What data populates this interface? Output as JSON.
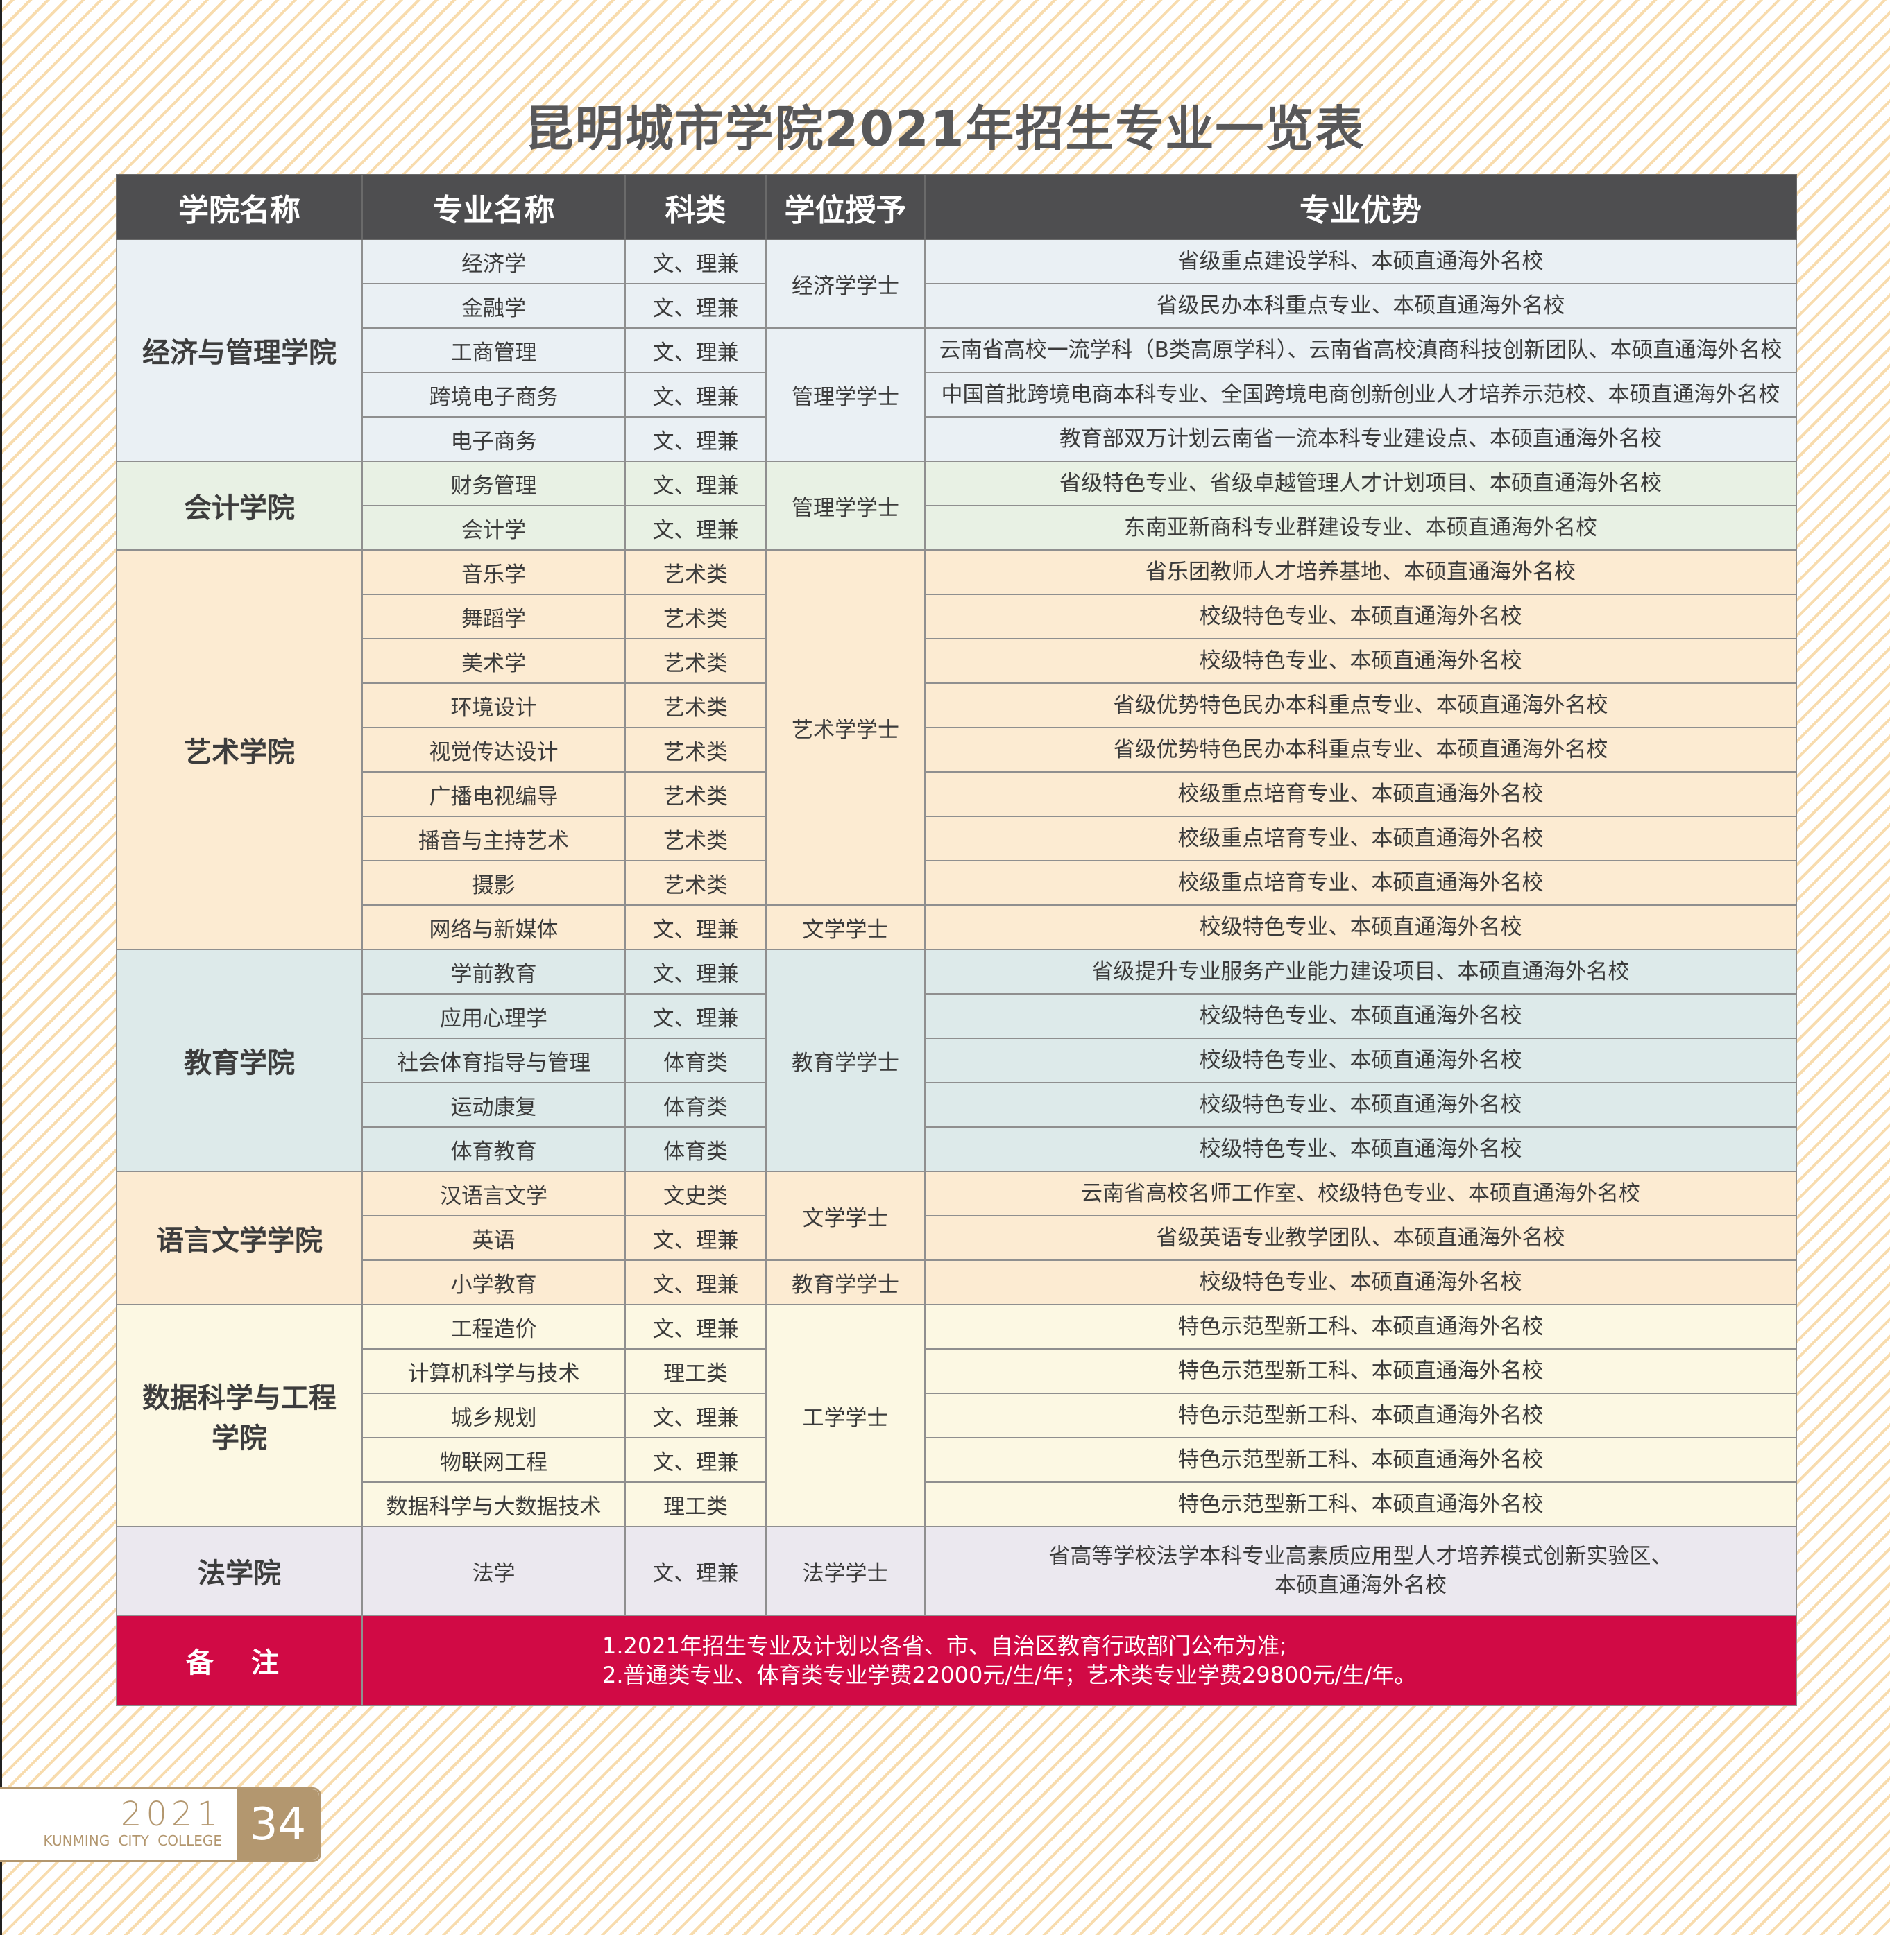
{
  "title": "昆明城市学院2021年招生专业一览表",
  "headers": [
    "学院名称",
    "专业名称",
    "科类",
    "学位授予",
    "专业优势"
  ],
  "colleges": [
    {
      "name": "经济与管理学院",
      "bg": "#eaf0f4",
      "majors": [
        {
          "major": "经济学",
          "category": "文、理兼",
          "degree": "经济学学士",
          "advantage": "省级重点建设学科、本硕直通海外名校"
        },
        {
          "major": "金融学",
          "category": "文、理兼",
          "degree": "经济学学士",
          "advantage": "省级民办本科重点专业、本硕直通海外名校"
        },
        {
          "major": "工商管理",
          "category": "文、理兼",
          "degree": "管理学学士",
          "advantage": "云南省高校一流学科（B类高原学科）、云南省高校滇商科技创新团队、本硕直通海外名校"
        },
        {
          "major": "跨境电子商务",
          "category": "文、理兼",
          "degree": "管理学学士",
          "advantage": "中国首批跨境电商本科专业、全国跨境电商创新创业人才培养示范校、本硕直通海外名校"
        },
        {
          "major": "电子商务",
          "category": "文、理兼",
          "degree": "管理学学士",
          "advantage": "教育部双万计划云南省一流本科专业建设点、本硕直通海外名校"
        }
      ]
    },
    {
      "name": "会计学院",
      "bg": "#e8f1e4",
      "majors": [
        {
          "major": "财务管理",
          "category": "文、理兼",
          "degree": "管理学学士",
          "advantage": "省级特色专业、省级卓越管理人才计划项目、本硕直通海外名校"
        },
        {
          "major": "会计学",
          "category": "文、理兼",
          "degree": "管理学学士",
          "advantage": "东南亚新商科专业群建设专业、本硕直通海外名校"
        }
      ]
    },
    {
      "name": "艺术学院",
      "bg": "#fcebd2",
      "majors": [
        {
          "major": "音乐学",
          "category": "艺术类",
          "degree": "艺术学学士",
          "advantage": "省乐团教师人才培养基地、本硕直通海外名校"
        },
        {
          "major": "舞蹈学",
          "category": "艺术类",
          "degree": "艺术学学士",
          "advantage": "校级特色专业、本硕直通海外名校"
        },
        {
          "major": "美术学",
          "category": "艺术类",
          "degree": "艺术学学士",
          "advantage": "校级特色专业、本硕直通海外名校"
        },
        {
          "major": "环境设计",
          "category": "艺术类",
          "degree": "艺术学学士",
          "advantage": "省级优势特色民办本科重点专业、本硕直通海外名校"
        },
        {
          "major": "视觉传达设计",
          "category": "艺术类",
          "degree": "艺术学学士",
          "advantage": "省级优势特色民办本科重点专业、本硕直通海外名校"
        },
        {
          "major": "广播电视编导",
          "category": "艺术类",
          "degree": "艺术学学士",
          "advantage": "校级重点培育专业、本硕直通海外名校"
        },
        {
          "major": "播音与主持艺术",
          "category": "艺术类",
          "degree": "艺术学学士",
          "advantage": "校级重点培育专业、本硕直通海外名校"
        },
        {
          "major": "摄影",
          "category": "艺术类",
          "degree": "艺术学学士",
          "advantage": "校级重点培育专业、本硕直通海外名校"
        },
        {
          "major": "网络与新媒体",
          "category": "文、理兼",
          "degree": "文学学士",
          "advantage": "校级特色专业、本硕直通海外名校"
        }
      ]
    },
    {
      "name": "教育学院",
      "bg": "#ddeaea",
      "majors": [
        {
          "major": "学前教育",
          "category": "文、理兼",
          "degree": "教育学学士",
          "advantage": "省级提升专业服务产业能力建设项目、本硕直通海外名校"
        },
        {
          "major": "应用心理学",
          "category": "文、理兼",
          "degree": "教育学学士",
          "advantage": "校级特色专业、本硕直通海外名校"
        },
        {
          "major": "社会体育指导与管理",
          "category": "体育类",
          "degree": "教育学学士",
          "advantage": "校级特色专业、本硕直通海外名校"
        },
        {
          "major": "运动康复",
          "category": "体育类",
          "degree": "教育学学士",
          "advantage": "校级特色专业、本硕直通海外名校"
        },
        {
          "major": "体育教育",
          "category": "体育类",
          "degree": "教育学学士",
          "advantage": "校级特色专业、本硕直通海外名校"
        }
      ]
    },
    {
      "name": "语言文学学院",
      "bg": "#fcebd2",
      "majors": [
        {
          "major": "汉语言文学",
          "category": "文史类",
          "degree": "文学学士",
          "advantage": "云南省高校名师工作室、校级特色专业、本硕直通海外名校"
        },
        {
          "major": "英语",
          "category": "文、理兼",
          "degree": "文学学士",
          "advantage": "省级英语专业教学团队、本硕直通海外名校"
        },
        {
          "major": "小学教育",
          "category": "文、理兼",
          "degree": "教育学学士",
          "advantage": "校级特色专业、本硕直通海外名校"
        }
      ]
    },
    {
      "name": "数据科学与工程\n学院",
      "bg": "#fcf8e3",
      "majors": [
        {
          "major": "工程造价",
          "category": "文、理兼",
          "degree": "工学学士",
          "advantage": "特色示范型新工科、本硕直通海外名校"
        },
        {
          "major": "计算机科学与技术",
          "category": "理工类",
          "degree": "工学学士",
          "advantage": "特色示范型新工科、本硕直通海外名校"
        },
        {
          "major": "城乡规划",
          "category": "文、理兼",
          "degree": "工学学士",
          "advantage": "特色示范型新工科、本硕直通海外名校"
        },
        {
          "major": "物联网工程",
          "category": "文、理兼",
          "degree": "工学学士",
          "advantage": "特色示范型新工科、本硕直通海外名校"
        },
        {
          "major": "数据科学与大数据技术",
          "category": "理工类",
          "degree": "工学学士",
          "advantage": "特色示范型新工科、本硕直通海外名校"
        }
      ]
    },
    {
      "name": "法学院",
      "bg": "#ebe8ef",
      "law": true,
      "majors": [
        {
          "major": "法学",
          "category": "文、理兼",
          "degree": "法学学士",
          "advantage": "省高等学校法学本科专业高素质应用型人才培养模式创新实验区、\n本硕直通海外名校"
        }
      ]
    }
  ],
  "notes": {
    "label": "备 注",
    "lines": [
      "1.2021年招生专业及计划以各省、市、自治区教育行政部门公布为准;",
      "2.普通类专业、体育类专业学费22000元/生/年；艺术类专业学费29800元/生/年。"
    ],
    "bg": "#d10a45"
  },
  "footer": {
    "year": "2021",
    "college": "KUNMING CITY COLLEGE",
    "page": "34"
  }
}
